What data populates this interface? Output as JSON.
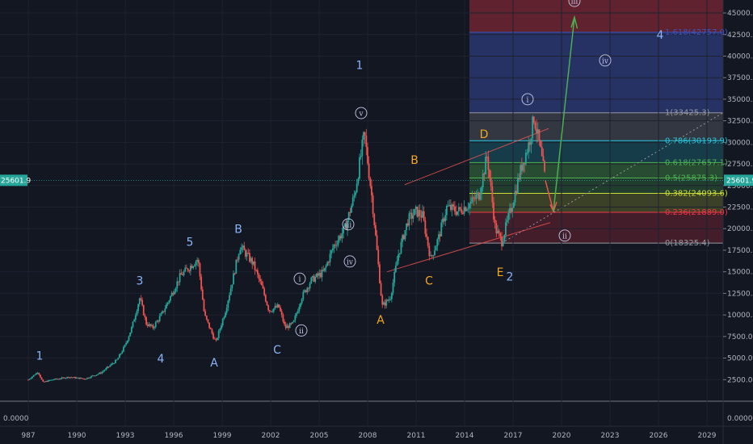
{
  "chart_data": {
    "type": "line",
    "x_ticks": [
      "987",
      "1990",
      "1993",
      "1996",
      "1999",
      "2002",
      "2005",
      "2008",
      "2011",
      "2014",
      "2017",
      "2020",
      "2023",
      "2026",
      "2029"
    ],
    "y_ticks": [
      "2500.0",
      "5000.0",
      "7500.0",
      "10000.0",
      "12500.0",
      "15000.0",
      "17500.0",
      "20000.0",
      "22500.0",
      "25000.0",
      "27500.0",
      "30000.0",
      "32500.0",
      "35000.0",
      "37500.0",
      "40000.0",
      "42500.0",
      "45000.0"
    ],
    "ylim": [
      0,
      46500
    ],
    "xlim": [
      1987,
      2030
    ],
    "lower_pane_tick": "0.0000",
    "current_price": "25601.9",
    "series": [
      {
        "values": [
          [
            1987.0,
            2500
          ],
          [
            1987.6,
            3400
          ],
          [
            1987.9,
            2200
          ],
          [
            1988.5,
            2500
          ],
          [
            1989.5,
            2800
          ],
          [
            1990.5,
            2600
          ],
          [
            1991.5,
            3300
          ],
          [
            1992.5,
            4800
          ],
          [
            1993.0,
            6500
          ],
          [
            1993.4,
            8500
          ],
          [
            1993.9,
            12000
          ],
          [
            1994.3,
            9000
          ],
          [
            1994.7,
            8500
          ],
          [
            1995.3,
            10200
          ],
          [
            1995.9,
            12500
          ],
          [
            1996.4,
            14500
          ],
          [
            1997.5,
            16500
          ],
          [
            1997.9,
            10000
          ],
          [
            1998.6,
            6800
          ],
          [
            1999.2,
            10500
          ],
          [
            1999.7,
            14500
          ],
          [
            2000.1,
            18000
          ],
          [
            2000.9,
            16000
          ],
          [
            2001.5,
            13000
          ],
          [
            2001.9,
            10500
          ],
          [
            2002.5,
            11000
          ],
          [
            2002.9,
            8500
          ],
          [
            2003.4,
            9000
          ],
          [
            2003.9,
            12000
          ],
          [
            2004.5,
            14000
          ],
          [
            2005.3,
            15000
          ],
          [
            2005.9,
            18000
          ],
          [
            2006.6,
            20000
          ],
          [
            2007.2,
            24000
          ],
          [
            2007.8,
            31000
          ],
          [
            2008.3,
            23000
          ],
          [
            2008.9,
            11000
          ],
          [
            2009.4,
            12000
          ],
          [
            2009.9,
            17000
          ],
          [
            2010.5,
            21000
          ],
          [
            2011.0,
            22000
          ],
          [
            2011.4,
            21500
          ],
          [
            2011.9,
            16500
          ],
          [
            2012.4,
            19000
          ],
          [
            2012.9,
            22500
          ],
          [
            2013.6,
            22000
          ],
          [
            2014.4,
            23000
          ],
          [
            2014.9,
            24000
          ],
          [
            2015.4,
            28500
          ],
          [
            2015.9,
            20000
          ],
          [
            2016.3,
            18500
          ],
          [
            2016.9,
            22500
          ],
          [
            2017.5,
            27000
          ],
          [
            2018.0,
            30000
          ],
          [
            2018.3,
            33000
          ],
          [
            2018.7,
            29000
          ],
          [
            2019.0,
            25600
          ]
        ]
      }
    ],
    "fib_levels": [
      {
        "label": "0(18325.4)",
        "value": 18325.4,
        "color": "#9598a1"
      },
      {
        "label": "0.236(21889.0)",
        "value": 21889.0,
        "color": "#f23645"
      },
      {
        "label": "0.382(24093.6)",
        "value": 24093.6,
        "color": "#cddc39"
      },
      {
        "label": "0.5(25875.3)",
        "value": 25875.3,
        "color": "#4caf50"
      },
      {
        "label": "0.618(27657.1)",
        "value": 27657.1,
        "color": "#4caf50"
      },
      {
        "label": "0.786(30193.9)",
        "value": 30193.9,
        "color": "#26c6da"
      },
      {
        "label": "1(33425.3)",
        "value": 33425.3,
        "color": "#9598a1"
      },
      {
        "label": "1.618(42757.0)",
        "value": 42757.0,
        "color": "#3f51b5"
      }
    ],
    "wave_labels": [
      {
        "text": "1",
        "x": 1987.7,
        "y": 4800,
        "color": "#8ab4f8"
      },
      {
        "text": "3",
        "x": 1993.9,
        "y": 13500,
        "color": "#8ab4f8"
      },
      {
        "text": "4",
        "x": 1995.2,
        "y": 4500,
        "color": "#8ab4f8"
      },
      {
        "text": "5",
        "x": 1997.0,
        "y": 18000,
        "color": "#8ab4f8"
      },
      {
        "text": "A",
        "x": 1998.5,
        "y": 4000,
        "color": "#8ab4f8"
      },
      {
        "text": "B",
        "x": 2000.0,
        "y": 19500,
        "color": "#8ab4f8"
      },
      {
        "text": "C",
        "x": 2002.4,
        "y": 5500,
        "color": "#8ab4f8"
      },
      {
        "text": "1",
        "x": 2007.5,
        "y": 38500,
        "color": "#8ab4f8"
      },
      {
        "text": "A",
        "x": 2008.8,
        "y": 9000,
        "color": "#f5a623"
      },
      {
        "text": "B",
        "x": 2010.9,
        "y": 27500,
        "color": "#f5a623"
      },
      {
        "text": "C",
        "x": 2011.8,
        "y": 13500,
        "color": "#f5a623"
      },
      {
        "text": "D",
        "x": 2015.2,
        "y": 30500,
        "color": "#f5a623"
      },
      {
        "text": "E",
        "x": 2016.2,
        "y": 14500,
        "color": "#f5a623"
      },
      {
        "text": "2",
        "x": 2016.8,
        "y": 14000,
        "color": "#8ab4f8"
      },
      {
        "text": "4",
        "x": 2026.1,
        "y": 42000,
        "color": "#8ab4f8"
      }
    ],
    "circled_labels": [
      {
        "text": "i",
        "x": 2003.8,
        "y": 14200
      },
      {
        "text": "ii",
        "x": 2003.9,
        "y": 8200
      },
      {
        "text": "iii",
        "x": 2006.8,
        "y": 20500
      },
      {
        "text": "iv",
        "x": 2006.9,
        "y": 16200
      },
      {
        "text": "v",
        "x": 2007.6,
        "y": 33400
      },
      {
        "text": "i",
        "x": 2017.9,
        "y": 35000
      },
      {
        "text": "ii",
        "x": 2020.2,
        "y": 19200
      },
      {
        "text": "iii",
        "x": 2020.8,
        "y": 46400
      },
      {
        "text": "iv",
        "x": 2022.7,
        "y": 39500
      }
    ]
  }
}
